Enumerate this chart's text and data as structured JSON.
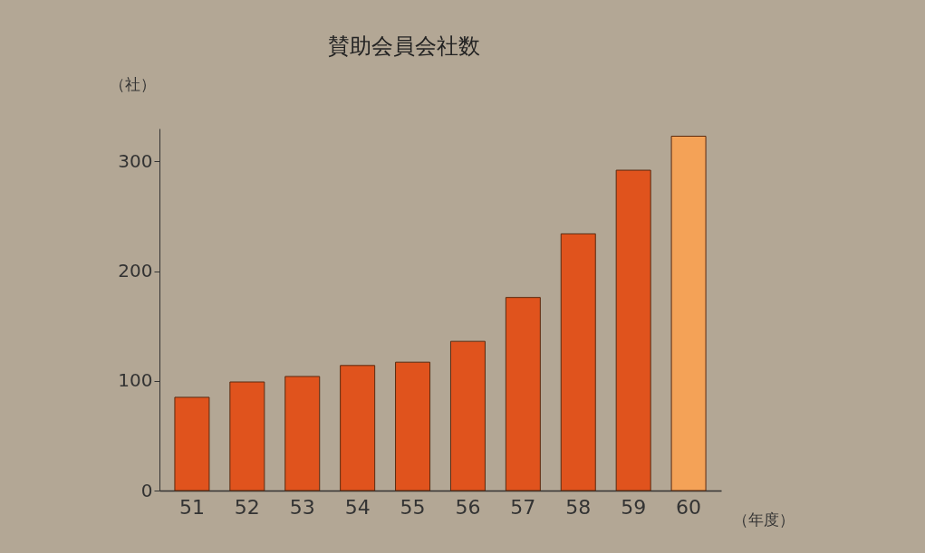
{
  "chart_data": {
    "type": "bar",
    "title": "賛助会員会社数",
    "ylabel": "（社）",
    "xlabel": "（年度）",
    "categories": [
      "51",
      "52",
      "53",
      "54",
      "55",
      "56",
      "57",
      "58",
      "59",
      "60"
    ],
    "values": [
      85,
      99,
      104,
      114,
      117,
      136,
      176,
      234,
      292,
      323
    ],
    "colors": [
      "#e0531d",
      "#e0531d",
      "#e0531d",
      "#e0531d",
      "#e0531d",
      "#e0531d",
      "#e0531d",
      "#e0531d",
      "#e0531d",
      "#f4a257"
    ],
    "ylim": [
      0,
      330
    ],
    "yticks": [
      0,
      100,
      200,
      300
    ],
    "grid": false
  }
}
